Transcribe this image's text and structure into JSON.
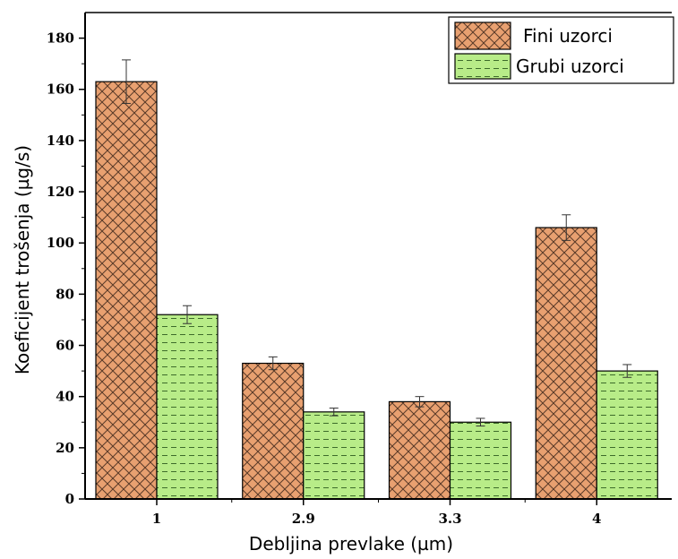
{
  "chart_data": {
    "type": "bar",
    "xlabel": "Debljina prevlake (µm)",
    "ylabel": "Koeficijent trošenja (µg/s)",
    "ylim": [
      0,
      190
    ],
    "yticks": [
      0,
      20,
      40,
      60,
      80,
      100,
      120,
      140,
      160,
      180
    ],
    "categories": [
      "1",
      "2.9",
      "3.3",
      "4"
    ],
    "series": [
      {
        "name": "Fini uzorci",
        "values": [
          163,
          53,
          38,
          106
        ],
        "errors": [
          8.5,
          2.5,
          2,
          5
        ],
        "color": "#e8a070",
        "pattern": "crosshatch"
      },
      {
        "name": "Grubi uzorci",
        "values": [
          72,
          34,
          30,
          50
        ],
        "errors": [
          3.5,
          1.5,
          1.5,
          2.5
        ],
        "color": "#b8ec88",
        "pattern": "dashed-lines"
      }
    ],
    "legend_position": "top-right",
    "grid": false
  }
}
